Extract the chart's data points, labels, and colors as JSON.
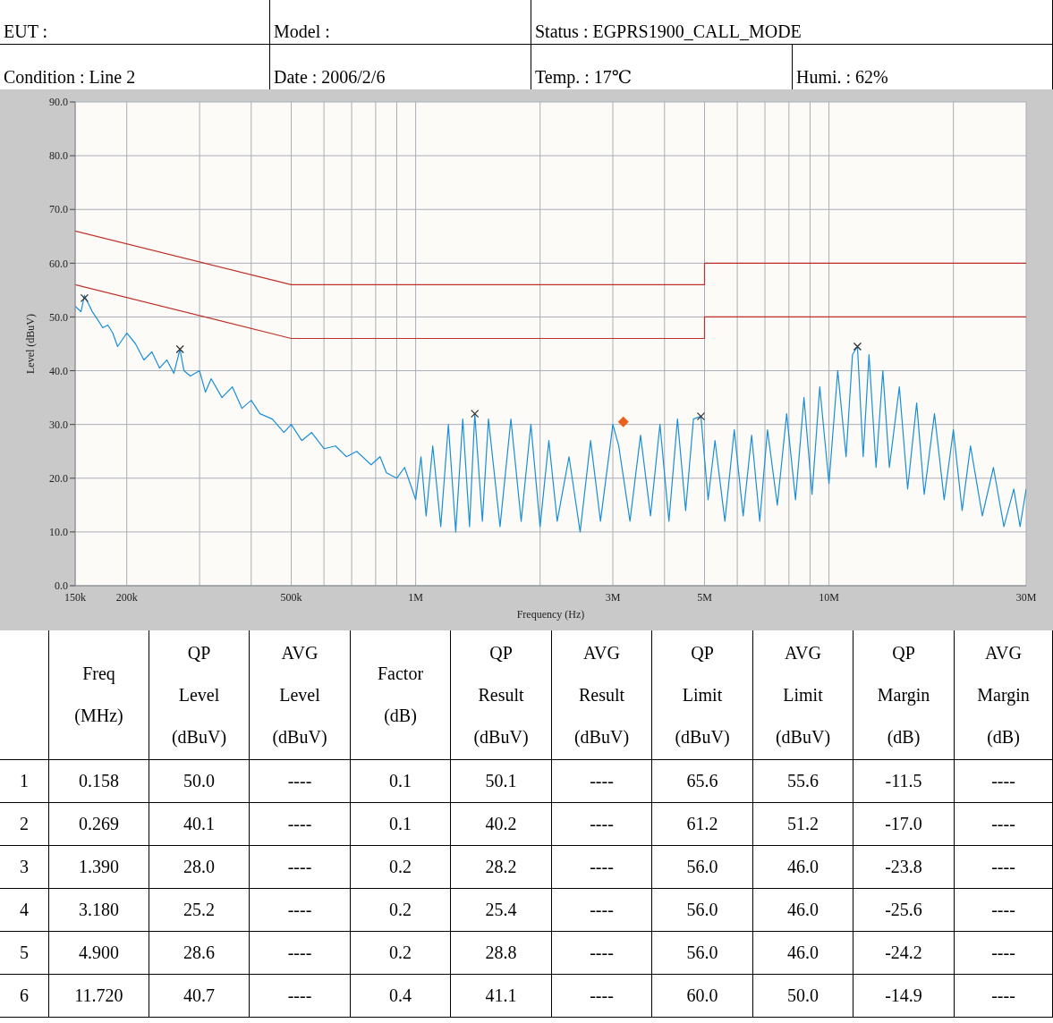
{
  "chart_data": {
    "type": "line",
    "xlabel": "Frequency (Hz)",
    "ylabel": "Level (dBuV)",
    "log": "x",
    "grid": true,
    "xlim": [
      150000,
      30000000
    ],
    "ylim": [
      0,
      90
    ],
    "xticks": [
      {
        "value": 150000,
        "label": "150k"
      },
      {
        "value": 200000,
        "label": "200k"
      },
      {
        "value": 300000,
        "label": null
      },
      {
        "value": 400000,
        "label": null
      },
      {
        "value": 500000,
        "label": "500k"
      },
      {
        "value": 600000,
        "label": null
      },
      {
        "value": 700000,
        "label": null
      },
      {
        "value": 800000,
        "label": null
      },
      {
        "value": 900000,
        "label": null
      },
      {
        "value": 1000000,
        "label": "1M"
      },
      {
        "value": 2000000,
        "label": null
      },
      {
        "value": 3000000,
        "label": "3M"
      },
      {
        "value": 4000000,
        "label": null
      },
      {
        "value": 5000000,
        "label": "5M"
      },
      {
        "value": 6000000,
        "label": null
      },
      {
        "value": 7000000,
        "label": null
      },
      {
        "value": 8000000,
        "label": null
      },
      {
        "value": 9000000,
        "label": null
      },
      {
        "value": 10000000,
        "label": "10M"
      },
      {
        "value": 20000000,
        "label": null
      },
      {
        "value": 30000000,
        "label": "30M"
      }
    ],
    "yticks": [
      {
        "value": 0,
        "label": "0.0"
      },
      {
        "value": 10,
        "label": "10.0"
      },
      {
        "value": 20,
        "label": "20.0"
      },
      {
        "value": 30,
        "label": "30.0"
      },
      {
        "value": 40,
        "label": "40.0"
      },
      {
        "value": 50,
        "label": "50.0"
      },
      {
        "value": 60,
        "label": "60.0"
      },
      {
        "value": 70,
        "label": "70.0"
      },
      {
        "value": 80,
        "label": "80.0"
      },
      {
        "value": 90,
        "label": "90.0"
      }
    ],
    "series": [
      {
        "color": "#c0302a",
        "marker": "none",
        "x": [
          150000,
          500000,
          5000000,
          5000000,
          30000000
        ],
        "values": [
          66,
          56,
          56,
          60,
          60
        ]
      },
      {
        "color": "#c0302a",
        "marker": "none",
        "x": [
          150000,
          500000,
          5000000,
          5000000,
          30000000
        ],
        "values": [
          56,
          46,
          46,
          50,
          50
        ]
      },
      {
        "color": "#1a8fd8",
        "marker": "none",
        "x": [
          150000,
          155000,
          158000,
          165000,
          170000,
          175000,
          180000,
          185000,
          190000,
          200000,
          210000,
          220000,
          230000,
          240000,
          250000,
          260000,
          269000,
          275000,
          285000,
          300000,
          310000,
          320000,
          340000,
          360000,
          380000,
          400000,
          420000,
          450000,
          480000,
          500000,
          530000,
          560000,
          600000,
          640000,
          680000,
          720000,
          780000,
          820000,
          850000,
          900000,
          940000,
          980000,
          1000000,
          1030000,
          1060000,
          1100000,
          1150000,
          1200000,
          1250000,
          1300000,
          1350000,
          1390000,
          1450000,
          1500000,
          1600000,
          1700000,
          1800000,
          1900000,
          2000000,
          2100000,
          2200000,
          2350000,
          2500000,
          2650000,
          2800000,
          3000000,
          3100000,
          3300000,
          3500000,
          3700000,
          3900000,
          4100000,
          4300000,
          4500000,
          4700000,
          4900000,
          5100000,
          5300000,
          5600000,
          5900000,
          6200000,
          6500000,
          6800000,
          7100000,
          7500000,
          7900000,
          8300000,
          8700000,
          9100000,
          9500000,
          10000000,
          10500000,
          11000000,
          11400000,
          11720000,
          12100000,
          12500000,
          13000000,
          13500000,
          14000000,
          14800000,
          15500000,
          16300000,
          17000000,
          18000000,
          19000000,
          20000000,
          21000000,
          22000000,
          23500000,
          25000000,
          26500000,
          28000000,
          29000000,
          30000000
        ],
        "values": [
          52,
          51,
          54,
          51,
          49.5,
          48,
          48.5,
          47,
          44.5,
          47,
          45,
          42,
          43.5,
          40.5,
          42,
          39.5,
          44,
          40,
          39,
          40,
          36,
          38.5,
          35,
          37,
          33,
          34.5,
          32,
          31,
          28.5,
          30,
          27,
          28.5,
          25.5,
          26,
          24,
          25,
          22.5,
          24,
          21,
          20,
          22,
          18,
          16,
          24,
          13,
          26,
          11,
          30,
          10,
          31,
          11,
          32,
          12,
          31,
          11,
          31,
          12,
          30,
          11,
          27,
          12,
          24,
          10,
          27,
          12,
          30,
          26,
          12,
          28,
          13,
          30,
          12,
          31,
          14,
          31,
          31.5,
          16,
          27,
          12,
          29,
          13,
          28,
          12,
          29,
          15,
          32,
          16,
          35,
          17,
          37,
          19,
          40,
          24,
          43,
          44.5,
          24,
          43,
          22,
          40,
          22,
          37,
          18,
          34,
          17,
          32,
          16,
          29,
          14,
          26,
          13,
          22,
          11,
          18,
          11,
          18
        ]
      },
      {
        "type": "scatter",
        "color": "#333333",
        "marker": "cross",
        "x": [
          158000,
          269000,
          1390000,
          4900000,
          11720000
        ],
        "values": [
          53.5,
          44,
          32,
          31.5,
          44.5
        ]
      },
      {
        "type": "scatter",
        "color": "#e8601c",
        "marker": "diamond",
        "x": [
          3180000
        ],
        "values": [
          30.5
        ]
      }
    ],
    "annotations": [
      "EUT :",
      "Model :",
      "Status : EGPRS1900_CALL_MODE",
      "Condition : Line 2",
      "Date : 2006/2/6",
      "Temp. : 17℃",
      "Humi. : 62%",
      "Freq\n(MHz)",
      "QP\nLevel\n(dBuV)",
      "AVG\nLevel\n(dBuV)",
      "Factor\n(dB)",
      "QP\nResult\n(dBuV)",
      "AVG\nResult\n(dBuV)",
      "QP\nLimit\n(dBuV)",
      "AVG\nLimit\n(dBuV)",
      "QP\nMargin\n(dB)",
      "AVG\nMargin\n(dB)",
      "1",
      "0.158",
      "50.0",
      "----",
      "0.1",
      "50.1",
      "----",
      "65.6",
      "55.6",
      "-11.5",
      "----",
      "2",
      "0.269",
      "40.1",
      "----",
      "0.1",
      "40.2",
      "----",
      "61.2",
      "51.2",
      "-17.0",
      "----",
      "3",
      "1.390",
      "28.0",
      "----",
      "0.2",
      "28.2",
      "----",
      "56.0",
      "46.0",
      "-23.8",
      "----",
      "4",
      "3.180",
      "25.2",
      "----",
      "0.2",
      "25.4",
      "----",
      "56.0",
      "46.0",
      "-25.6",
      "----",
      "5",
      "4.900",
      "28.6",
      "----",
      "0.2",
      "28.8",
      "----",
      "56.0",
      "46.0",
      "-24.2",
      "----",
      "6",
      "11.720",
      "40.7",
      "----",
      "0.4",
      "41.1",
      "----",
      "60.0",
      "50.0",
      "-14.9",
      "----"
    ]
  }
}
